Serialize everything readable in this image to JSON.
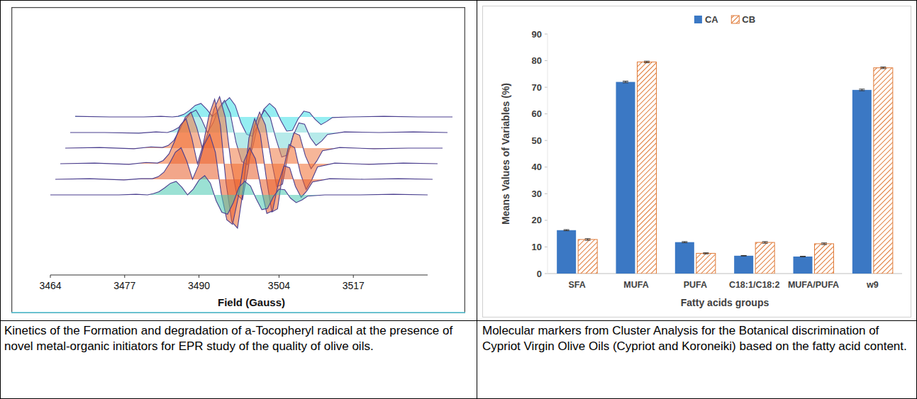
{
  "chart_data": [
    {
      "type": "line",
      "caption": "Kinetics of the Formation and degradation of a-Tocopheryl radical at the presence of novel metal-organic initiators for EPR study of the quality of olive oils.",
      "x_label": "Field (Gauss)",
      "x": [
        3464,
        3470,
        3476,
        3479,
        3481,
        3482,
        3483,
        3484,
        3485,
        3486,
        3487,
        3488,
        3489,
        3490,
        3491,
        3492,
        3493,
        3494,
        3495,
        3496,
        3497,
        3498,
        3499,
        3500,
        3501,
        3502,
        3503,
        3504,
        3505,
        3506,
        3507,
        3508,
        3509,
        3512,
        3518,
        3524,
        3530
      ],
      "xlim": [
        3464,
        3530
      ],
      "xticks": [
        3464,
        3477,
        3490,
        3504,
        3517
      ],
      "ylim": [
        -110,
        110
      ],
      "tick_labels": "x",
      "grid": false,
      "series": [
        {
          "color": "#48c9b0",
          "values": [
            0,
            0,
            0,
            1,
            0,
            2,
            5,
            11,
            18,
            21,
            12,
            0,
            9,
            23,
            30,
            18,
            -9,
            -27,
            -30,
            -12,
            12,
            21,
            14,
            -6,
            -23,
            -21,
            -3,
            9,
            8,
            -5,
            -12,
            -8,
            -2,
            0,
            0,
            1,
            0
          ]
        },
        {
          "color": "#e85d2a",
          "values": [
            0,
            1,
            -1,
            1,
            1,
            4,
            11,
            25,
            42,
            49,
            28,
            0,
            21,
            53,
            70,
            42,
            -21,
            -63,
            -70,
            -28,
            28,
            49,
            32,
            -14,
            -53,
            -49,
            -7,
            21,
            18,
            -11,
            -28,
            -18,
            -4,
            1,
            0,
            1,
            0
          ]
        },
        {
          "color": "#f26b2e",
          "values": [
            0,
            1,
            -1,
            2,
            1,
            5,
            15,
            35,
            60,
            70,
            40,
            0,
            30,
            75,
            100,
            60,
            -30,
            -90,
            -100,
            -40,
            40,
            70,
            45,
            -20,
            -75,
            -70,
            -10,
            30,
            25,
            -15,
            -40,
            -25,
            -5,
            1,
            -1,
            1,
            0
          ]
        },
        {
          "color": "#ef7a45",
          "values": [
            0,
            1,
            -1,
            2,
            1,
            4,
            12,
            28,
            48,
            56,
            32,
            0,
            24,
            60,
            80,
            48,
            -24,
            -72,
            -80,
            -32,
            32,
            56,
            36,
            -16,
            -60,
            -56,
            -8,
            24,
            20,
            -12,
            -32,
            -20,
            -4,
            1,
            -1,
            0,
            0
          ]
        },
        {
          "color": "#7ad8d8",
          "values": [
            0,
            0,
            -1,
            1,
            0,
            3,
            8,
            18,
            30,
            35,
            20,
            0,
            15,
            38,
            50,
            30,
            -15,
            -45,
            -50,
            -20,
            20,
            35,
            23,
            -10,
            -38,
            -35,
            -5,
            15,
            13,
            -8,
            -20,
            -13,
            -3,
            1,
            0,
            1,
            0
          ]
        },
        {
          "color": "#3ee0e8",
          "values": [
            1,
            0,
            0,
            1,
            0,
            1,
            4,
            10,
            18,
            21,
            12,
            1,
            9,
            22,
            30,
            18,
            -9,
            -27,
            -30,
            -12,
            12,
            21,
            13,
            -6,
            -22,
            -21,
            -3,
            9,
            7,
            -4,
            -12,
            -7,
            -1,
            0,
            1,
            0,
            0
          ]
        }
      ]
    },
    {
      "type": "bar",
      "caption": "Molecular markers from Cluster Analysis for the Botanical discrimination of Cypriot Virgin Olive Oils (Cypriot and Koroneiki) based on the fatty acid content.",
      "x_label": "Fatty acids groups",
      "y_label": "Means Values of Variables (%)",
      "categories": [
        "SFA",
        "MUFA",
        "PUFA",
        "C18:1/C18:2",
        "MUFA/PUFA",
        "w9"
      ],
      "series": [
        {
          "name": "CA",
          "color": "#3b78c4",
          "values": [
            16.3,
            72,
            11.8,
            6.7,
            6.4,
            69
          ],
          "errors": [
            0.2,
            0.3,
            0.2,
            0.1,
            0.1,
            0.3
          ]
        },
        {
          "name": "CB",
          "color": "#e07b39",
          "values": [
            12.8,
            79.5,
            7.6,
            11.7,
            11.2,
            77.3
          ],
          "errors": [
            0.3,
            0.3,
            0.2,
            0.3,
            0.3,
            0.3
          ]
        }
      ],
      "ylim": [
        0,
        90
      ],
      "yticks": [
        0,
        10,
        20,
        30,
        40,
        50,
        60,
        70,
        80,
        90
      ],
      "legend": "top",
      "grid": false
    }
  ]
}
